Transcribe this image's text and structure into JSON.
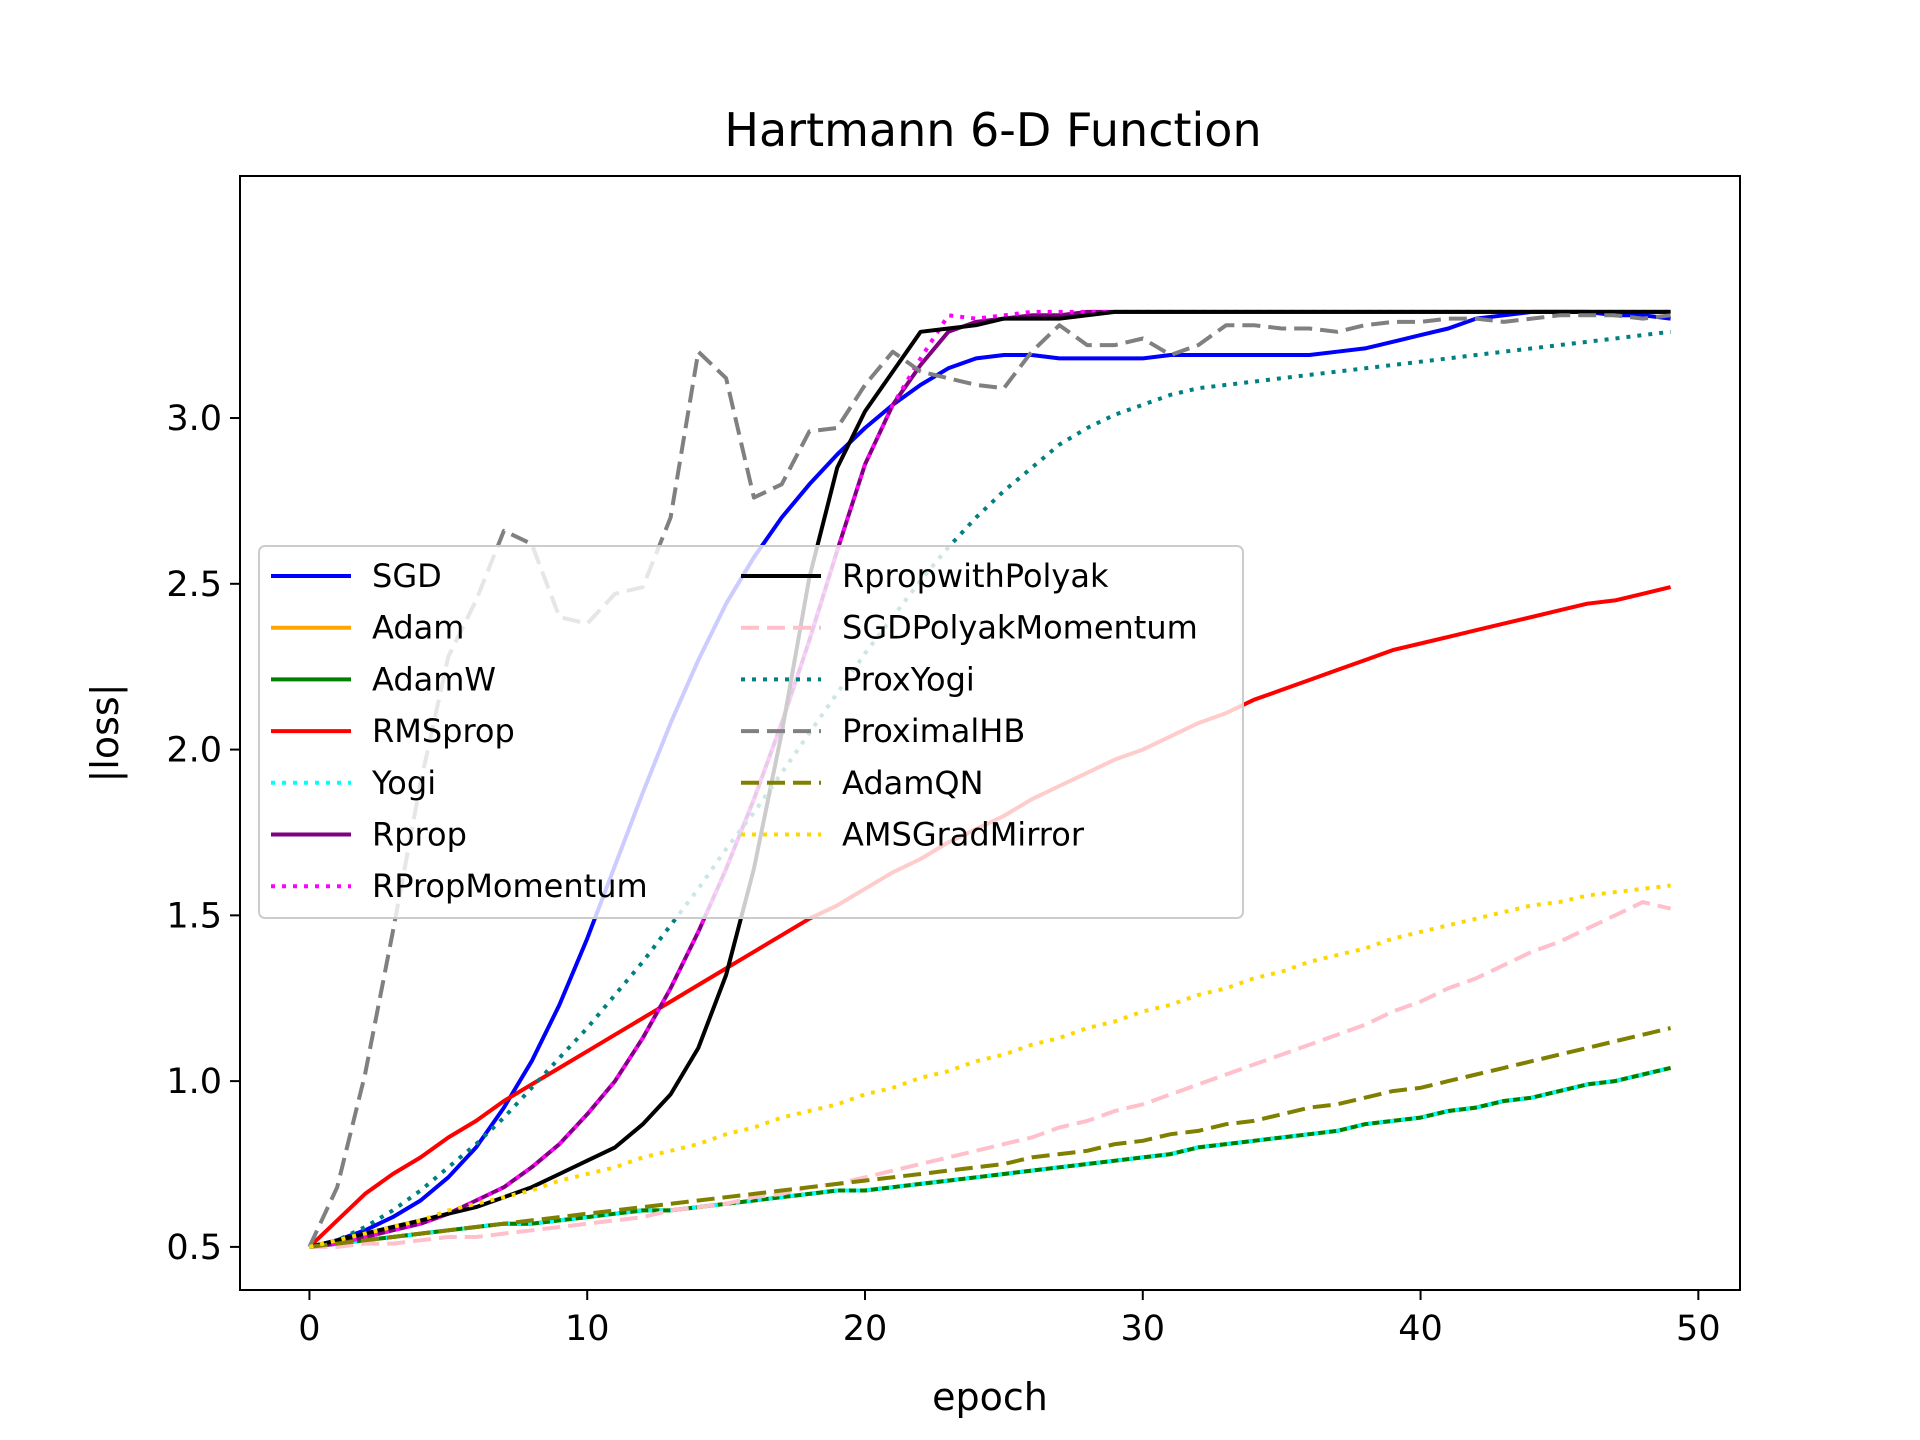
{
  "chart_data": {
    "type": "line",
    "title": "Hartmann 6-D Function",
    "xlabel": "epoch",
    "ylabel": "|loss|",
    "xlim": [
      -2.5,
      51.5
    ],
    "ylim": [
      0.37,
      3.73
    ],
    "xticks": [
      0,
      10,
      20,
      30,
      40,
      50
    ],
    "yticks": [
      0.5,
      1.0,
      1.5,
      2.0,
      2.5,
      3.0
    ],
    "grid": false,
    "legend_position": "center-left",
    "legend_columns": 2,
    "legend_alpha": 0.8,
    "series": [
      {
        "name": "SGD",
        "color": "#0000ff",
        "style": "solid",
        "y": [
          0.5,
          0.52,
          0.55,
          0.59,
          0.64,
          0.71,
          0.8,
          0.92,
          1.06,
          1.23,
          1.43,
          1.65,
          1.87,
          2.08,
          2.27,
          2.44,
          2.58,
          2.7,
          2.8,
          2.89,
          2.97,
          3.04,
          3.1,
          3.15,
          3.18,
          3.19,
          3.19,
          3.18,
          3.18,
          3.18,
          3.18,
          3.19,
          3.19,
          3.19,
          3.19,
          3.19,
          3.19,
          3.2,
          3.21,
          3.23,
          3.25,
          3.27,
          3.3,
          3.31,
          3.32,
          3.32,
          3.32,
          3.31,
          3.31,
          3.3
        ]
      },
      {
        "name": "Adam",
        "color": "#ffa500",
        "style": "solid",
        "y": [
          0.5,
          0.51,
          0.52,
          0.53,
          0.54,
          0.55,
          0.56,
          0.57,
          0.57,
          0.58,
          0.59,
          0.6,
          0.61,
          0.61,
          0.62,
          0.63,
          0.64,
          0.65,
          0.66,
          0.67,
          0.67,
          0.68,
          0.69,
          0.7,
          0.71,
          0.72,
          0.73,
          0.74,
          0.75,
          0.76,
          0.77,
          0.78,
          0.8,
          0.81,
          0.82,
          0.83,
          0.84,
          0.85,
          0.87,
          0.88,
          0.89,
          0.91,
          0.92,
          0.94,
          0.95,
          0.97,
          0.99,
          1.0,
          1.02,
          1.04
        ]
      },
      {
        "name": "AdamW",
        "color": "#008000",
        "style": "solid",
        "y": [
          0.5,
          0.51,
          0.52,
          0.53,
          0.54,
          0.55,
          0.56,
          0.57,
          0.57,
          0.58,
          0.59,
          0.6,
          0.61,
          0.61,
          0.62,
          0.63,
          0.64,
          0.65,
          0.66,
          0.67,
          0.67,
          0.68,
          0.69,
          0.7,
          0.71,
          0.72,
          0.73,
          0.74,
          0.75,
          0.76,
          0.77,
          0.78,
          0.8,
          0.81,
          0.82,
          0.83,
          0.84,
          0.85,
          0.87,
          0.88,
          0.89,
          0.91,
          0.92,
          0.94,
          0.95,
          0.97,
          0.99,
          1.0,
          1.02,
          1.04
        ]
      },
      {
        "name": "RMSprop",
        "color": "#ff0000",
        "style": "solid",
        "y": [
          0.5,
          0.58,
          0.66,
          0.72,
          0.77,
          0.83,
          0.88,
          0.94,
          0.99,
          1.04,
          1.09,
          1.14,
          1.19,
          1.24,
          1.29,
          1.34,
          1.39,
          1.44,
          1.49,
          1.53,
          1.58,
          1.63,
          1.67,
          1.72,
          1.76,
          1.8,
          1.85,
          1.89,
          1.93,
          1.97,
          2.0,
          2.04,
          2.08,
          2.11,
          2.15,
          2.18,
          2.21,
          2.24,
          2.27,
          2.3,
          2.32,
          2.34,
          2.36,
          2.38,
          2.4,
          2.42,
          2.44,
          2.45,
          2.47,
          2.49
        ]
      },
      {
        "name": "Yogi",
        "color": "#00ffff",
        "style": "dotted",
        "y": [
          0.5,
          0.51,
          0.52,
          0.53,
          0.54,
          0.55,
          0.56,
          0.57,
          0.57,
          0.58,
          0.59,
          0.6,
          0.61,
          0.61,
          0.62,
          0.63,
          0.64,
          0.65,
          0.66,
          0.67,
          0.67,
          0.68,
          0.69,
          0.7,
          0.71,
          0.72,
          0.73,
          0.74,
          0.75,
          0.76,
          0.77,
          0.78,
          0.8,
          0.81,
          0.82,
          0.83,
          0.84,
          0.85,
          0.87,
          0.88,
          0.89,
          0.91,
          0.92,
          0.94,
          0.95,
          0.97,
          0.99,
          1.0,
          1.02,
          1.04
        ]
      },
      {
        "name": "Rprop",
        "color": "#800080",
        "style": "solid",
        "y": [
          0.5,
          0.51,
          0.53,
          0.55,
          0.57,
          0.6,
          0.64,
          0.68,
          0.74,
          0.81,
          0.9,
          1.0,
          1.13,
          1.28,
          1.45,
          1.64,
          1.85,
          2.08,
          2.33,
          2.6,
          2.86,
          3.04,
          3.16,
          3.26,
          3.29,
          3.3,
          3.31,
          3.31,
          3.32,
          3.32,
          3.32,
          3.32,
          3.32,
          3.32,
          3.32,
          3.32,
          3.32,
          3.32,
          3.32,
          3.32,
          3.32,
          3.32,
          3.32,
          3.32,
          3.32,
          3.32,
          3.32,
          3.32,
          3.32,
          3.32
        ]
      },
      {
        "name": "RPropMomentum",
        "color": "#ff00ff",
        "style": "dotted",
        "y": [
          0.5,
          0.51,
          0.53,
          0.55,
          0.57,
          0.6,
          0.64,
          0.68,
          0.74,
          0.81,
          0.9,
          1.0,
          1.13,
          1.28,
          1.45,
          1.64,
          1.85,
          2.08,
          2.33,
          2.6,
          2.86,
          3.04,
          3.18,
          3.31,
          3.3,
          3.31,
          3.32,
          3.32,
          3.32,
          3.32,
          3.32,
          3.32,
          3.32,
          3.32,
          3.32,
          3.32,
          3.32,
          3.32,
          3.32,
          3.32,
          3.32,
          3.32,
          3.32,
          3.32,
          3.32,
          3.32,
          3.32,
          3.32,
          3.32,
          3.32
        ]
      },
      {
        "name": "RpropwithPolyak",
        "color": "#000000",
        "style": "solid",
        "y": [
          0.5,
          0.52,
          0.54,
          0.56,
          0.58,
          0.6,
          0.62,
          0.65,
          0.68,
          0.72,
          0.76,
          0.8,
          0.87,
          0.96,
          1.1,
          1.32,
          1.64,
          2.05,
          2.52,
          2.85,
          3.02,
          3.14,
          3.26,
          3.27,
          3.28,
          3.3,
          3.3,
          3.3,
          3.31,
          3.32,
          3.32,
          3.32,
          3.32,
          3.32,
          3.32,
          3.32,
          3.32,
          3.32,
          3.32,
          3.32,
          3.32,
          3.32,
          3.32,
          3.32,
          3.32,
          3.32,
          3.32,
          3.32,
          3.32,
          3.32
        ]
      },
      {
        "name": "SGDPolyakMomentum",
        "color": "#ffc0cb",
        "style": "dashed",
        "y": [
          0.5,
          0.5,
          0.51,
          0.51,
          0.52,
          0.53,
          0.53,
          0.54,
          0.55,
          0.56,
          0.57,
          0.58,
          0.59,
          0.61,
          0.62,
          0.63,
          0.65,
          0.66,
          0.68,
          0.69,
          0.71,
          0.73,
          0.75,
          0.77,
          0.79,
          0.81,
          0.83,
          0.86,
          0.88,
          0.91,
          0.93,
          0.96,
          0.99,
          1.02,
          1.05,
          1.08,
          1.11,
          1.14,
          1.17,
          1.21,
          1.24,
          1.28,
          1.31,
          1.35,
          1.39,
          1.42,
          1.46,
          1.5,
          1.54,
          1.52
        ]
      },
      {
        "name": "ProxYogi",
        "color": "#008080",
        "style": "dotted",
        "y": [
          0.5,
          0.52,
          0.56,
          0.61,
          0.67,
          0.74,
          0.81,
          0.89,
          0.98,
          1.07,
          1.16,
          1.26,
          1.36,
          1.47,
          1.58,
          1.7,
          1.81,
          1.93,
          2.05,
          2.17,
          2.29,
          2.4,
          2.51,
          2.61,
          2.7,
          2.78,
          2.85,
          2.92,
          2.97,
          3.01,
          3.04,
          3.07,
          3.09,
          3.1,
          3.11,
          3.12,
          3.13,
          3.14,
          3.15,
          3.16,
          3.17,
          3.18,
          3.19,
          3.2,
          3.21,
          3.22,
          3.23,
          3.24,
          3.25,
          3.26
        ]
      },
      {
        "name": "ProximalHB",
        "color": "#808080",
        "style": "dashed",
        "y": [
          0.5,
          0.68,
          1.02,
          1.45,
          1.9,
          2.28,
          2.45,
          2.66,
          2.62,
          2.4,
          2.38,
          2.47,
          2.49,
          2.7,
          3.2,
          3.12,
          2.76,
          2.8,
          2.96,
          2.97,
          3.1,
          3.2,
          3.14,
          3.12,
          3.1,
          3.09,
          3.2,
          3.28,
          3.22,
          3.22,
          3.24,
          3.19,
          3.22,
          3.28,
          3.28,
          3.27,
          3.27,
          3.26,
          3.28,
          3.29,
          3.29,
          3.3,
          3.3,
          3.29,
          3.3,
          3.31,
          3.31,
          3.31,
          3.3,
          3.31
        ]
      },
      {
        "name": "AdamQN",
        "color": "#808000",
        "style": "dashed",
        "y": [
          0.5,
          0.51,
          0.52,
          0.53,
          0.54,
          0.55,
          0.56,
          0.57,
          0.58,
          0.59,
          0.6,
          0.61,
          0.62,
          0.63,
          0.64,
          0.65,
          0.66,
          0.67,
          0.68,
          0.69,
          0.7,
          0.71,
          0.72,
          0.73,
          0.74,
          0.75,
          0.77,
          0.78,
          0.79,
          0.81,
          0.82,
          0.84,
          0.85,
          0.87,
          0.88,
          0.9,
          0.92,
          0.93,
          0.95,
          0.97,
          0.98,
          1.0,
          1.02,
          1.04,
          1.06,
          1.08,
          1.1,
          1.12,
          1.14,
          1.16
        ]
      },
      {
        "name": "AMSGradMirror",
        "color": "#ffd700",
        "style": "dotted",
        "y": [
          0.5,
          0.52,
          0.54,
          0.56,
          0.58,
          0.61,
          0.63,
          0.65,
          0.67,
          0.7,
          0.72,
          0.74,
          0.77,
          0.79,
          0.81,
          0.84,
          0.86,
          0.89,
          0.91,
          0.93,
          0.96,
          0.98,
          1.01,
          1.03,
          1.06,
          1.08,
          1.11,
          1.13,
          1.16,
          1.18,
          1.21,
          1.23,
          1.26,
          1.28,
          1.31,
          1.33,
          1.36,
          1.38,
          1.4,
          1.43,
          1.45,
          1.47,
          1.49,
          1.51,
          1.53,
          1.54,
          1.56,
          1.57,
          1.58,
          1.59
        ]
      }
    ]
  }
}
